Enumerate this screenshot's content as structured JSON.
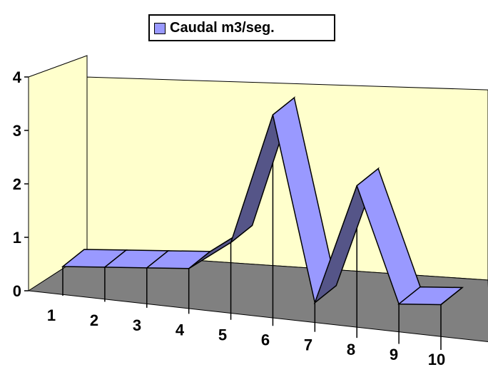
{
  "chart_data": {
    "type": "area",
    "three_d": true,
    "categories": [
      "1",
      "2",
      "3",
      "4",
      "5",
      "6",
      "7",
      "8",
      "9",
      "10"
    ],
    "series": [
      {
        "name": "Caudal m3/seg.",
        "values": [
          0.2,
          0.3,
          0.4,
          0.5,
          1.1,
          3.6,
          0.2,
          2.5,
          0.4,
          0.5
        ]
      }
    ],
    "ylim": [
      0,
      4
    ],
    "yticks": [
      "0",
      "1",
      "2",
      "3",
      "4"
    ],
    "legend_position": "top",
    "colors": {
      "series_top": "#9999ff",
      "series_side": "#555588",
      "wall": "#ffffcc",
      "floor": "#808080"
    }
  }
}
